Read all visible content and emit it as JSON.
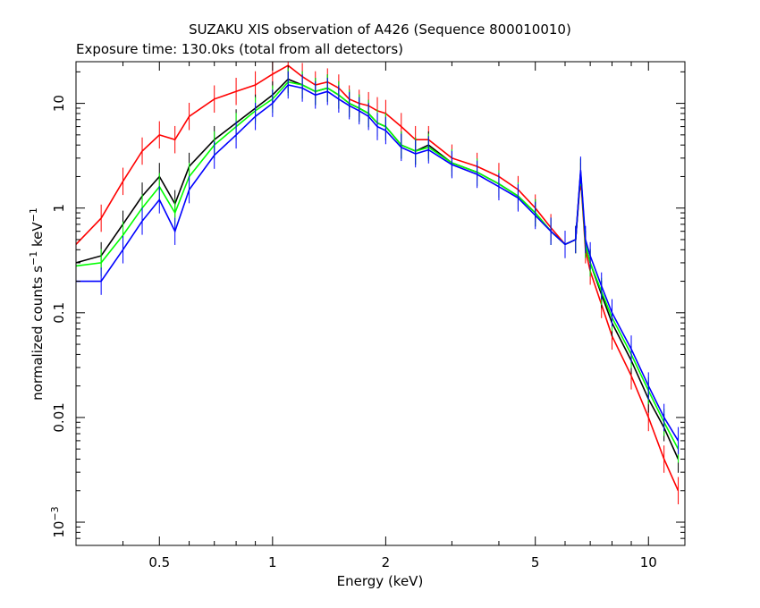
{
  "chart_data": {
    "type": "scatter",
    "title": "SUZAKU XIS observation of A426 (Sequence 800010010)",
    "subtitle": "Exposure time: 130.0ks (total from all detectors)",
    "xlabel": "Energy (keV)",
    "ylabel_main": "normalized counts s",
    "ylabel_sup1": "−1",
    "ylabel_mid": " keV",
    "ylabel_sup2": "−1",
    "xscale": "log",
    "yscale": "log",
    "xlim": [
      0.3,
      12.5
    ],
    "ylim": [
      0.0006,
      25
    ],
    "x_ticks": [
      {
        "value": 0.5,
        "label": "0.5"
      },
      {
        "value": 1,
        "label": "1"
      },
      {
        "value": 2,
        "label": "2"
      },
      {
        "value": 5,
        "label": "5"
      },
      {
        "value": 10,
        "label": "10"
      }
    ],
    "y_ticks": [
      {
        "value": 10,
        "label": "10",
        "sup": ""
      },
      {
        "value": 1,
        "label": "1",
        "sup": ""
      },
      {
        "value": 0.1,
        "label": "0.1",
        "sup": ""
      },
      {
        "value": 0.01,
        "label": "0.01",
        "sup": ""
      },
      {
        "value": 0.001,
        "label": "10",
        "sup": "−3"
      }
    ],
    "grid": false,
    "legend": "none",
    "series": [
      {
        "color": "#ff0000",
        "x": [
          0.3,
          0.35,
          0.4,
          0.45,
          0.5,
          0.55,
          0.6,
          0.7,
          0.8,
          0.9,
          1.0,
          1.1,
          1.2,
          1.3,
          1.4,
          1.5,
          1.6,
          1.7,
          1.8,
          1.9,
          2.0,
          2.2,
          2.4,
          2.6,
          3.0,
          3.5,
          4.0,
          4.5,
          5.0,
          5.5,
          6.0,
          6.4,
          6.6,
          6.8,
          7.0,
          7.5,
          8.0,
          9.0,
          10.0,
          11.0,
          12.0
        ],
        "y": [
          0.45,
          0.8,
          1.8,
          3.5,
          5.0,
          4.5,
          7.5,
          11,
          13,
          15,
          19,
          23,
          18,
          15,
          16,
          14,
          11,
          10,
          9.5,
          8.5,
          8.0,
          6.0,
          4.5,
          4.5,
          3.0,
          2.5,
          2.0,
          1.5,
          1.0,
          0.65,
          0.45,
          0.5,
          2.0,
          0.4,
          0.25,
          0.12,
          0.06,
          0.025,
          0.01,
          0.004,
          0.002
        ]
      },
      {
        "color": "#000000",
        "x": [
          0.3,
          0.35,
          0.4,
          0.45,
          0.5,
          0.55,
          0.6,
          0.7,
          0.8,
          0.9,
          1.0,
          1.1,
          1.2,
          1.3,
          1.4,
          1.5,
          1.6,
          1.7,
          1.8,
          1.9,
          2.0,
          2.2,
          2.4,
          2.6,
          3.0,
          3.5,
          4.0,
          4.5,
          5.0,
          5.5,
          6.0,
          6.4,
          6.6,
          6.8,
          7.0,
          7.5,
          8.0,
          9.0,
          10.0,
          11.0,
          12.0
        ],
        "y": [
          0.3,
          0.35,
          0.7,
          1.3,
          2.0,
          1.1,
          2.5,
          4.5,
          6.5,
          9.0,
          12,
          17,
          15,
          13,
          14,
          12,
          10,
          9.0,
          8.0,
          6.5,
          6.0,
          4.0,
          3.5,
          4.0,
          2.7,
          2.2,
          1.7,
          1.3,
          0.9,
          0.6,
          0.45,
          0.5,
          2.2,
          0.45,
          0.3,
          0.15,
          0.08,
          0.035,
          0.015,
          0.008,
          0.004
        ]
      },
      {
        "color": "#00ff00",
        "x": [
          0.3,
          0.35,
          0.4,
          0.45,
          0.5,
          0.55,
          0.6,
          0.7,
          0.8,
          0.9,
          1.0,
          1.1,
          1.2,
          1.3,
          1.4,
          1.5,
          1.6,
          1.7,
          1.8,
          1.9,
          2.0,
          2.2,
          2.4,
          2.6,
          3.0,
          3.5,
          4.0,
          4.5,
          5.0,
          5.5,
          6.0,
          6.4,
          6.6,
          6.8,
          7.0,
          7.5,
          8.0,
          9.0,
          10.0,
          11.0,
          12.0
        ],
        "y": [
          0.28,
          0.3,
          0.55,
          1.0,
          1.6,
          0.9,
          2.0,
          4.0,
          6.0,
          8.5,
          11,
          16,
          15,
          13,
          14,
          12,
          10,
          9.0,
          8.0,
          6.5,
          6.0,
          4.0,
          3.5,
          3.8,
          2.7,
          2.2,
          1.7,
          1.3,
          0.9,
          0.6,
          0.45,
          0.5,
          2.2,
          0.45,
          0.3,
          0.16,
          0.09,
          0.04,
          0.018,
          0.009,
          0.005
        ]
      },
      {
        "color": "#0000ff",
        "x": [
          0.3,
          0.35,
          0.4,
          0.45,
          0.5,
          0.55,
          0.6,
          0.7,
          0.8,
          0.9,
          1.0,
          1.1,
          1.2,
          1.3,
          1.4,
          1.5,
          1.6,
          1.7,
          1.8,
          1.9,
          2.0,
          2.2,
          2.4,
          2.6,
          3.0,
          3.5,
          4.0,
          4.5,
          5.0,
          5.5,
          6.0,
          6.4,
          6.6,
          6.8,
          7.0,
          7.5,
          8.0,
          9.0,
          10.0,
          11.0,
          12.0
        ],
        "y": [
          0.2,
          0.2,
          0.4,
          0.75,
          1.2,
          0.6,
          1.5,
          3.2,
          5.0,
          7.5,
          10,
          15,
          14,
          12,
          13,
          11,
          9.5,
          8.5,
          7.5,
          6.0,
          5.5,
          3.8,
          3.3,
          3.6,
          2.6,
          2.1,
          1.6,
          1.25,
          0.85,
          0.6,
          0.45,
          0.5,
          2.3,
          0.5,
          0.35,
          0.18,
          0.1,
          0.045,
          0.02,
          0.01,
          0.006
        ]
      }
    ]
  }
}
